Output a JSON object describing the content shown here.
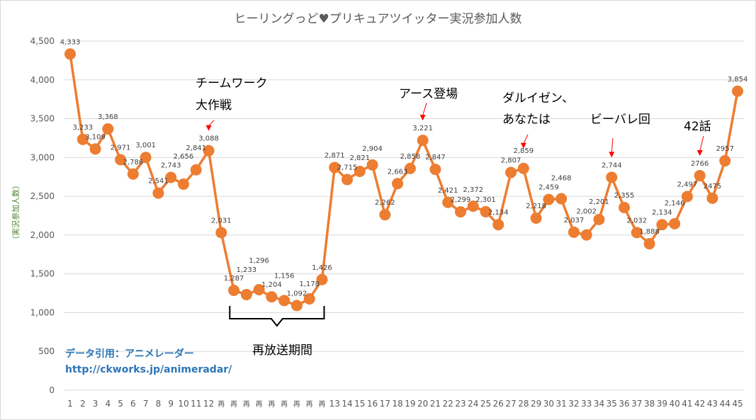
{
  "chart_data": {
    "type": "line",
    "title": "ヒーリングっど♥プリキュアツイッター実況参加人数",
    "ylabel": "（実況参加人数）",
    "xlabel": "",
    "ylim": [
      0,
      4500
    ],
    "yticks": [
      "0",
      "500",
      "1,000",
      "1,500",
      "2,000",
      "2,500",
      "3,000",
      "3,500",
      "4,000",
      "4,500"
    ],
    "grid": true,
    "categories": [
      "1",
      "2",
      "3",
      "4",
      "5",
      "6",
      "7",
      "8",
      "9",
      "10",
      "11",
      "12",
      "再",
      "再",
      "再",
      "再",
      "再",
      "再",
      "再",
      "再",
      "再",
      "13",
      "14",
      "15",
      "16",
      "17",
      "18",
      "19",
      "20",
      "21",
      "22",
      "23",
      "24",
      "25",
      "26",
      "27",
      "28",
      "29",
      "30",
      "31",
      "32",
      "33",
      "34",
      "35",
      "36",
      "37",
      "38",
      "39",
      "40",
      "41",
      "42",
      "43",
      "44",
      "45"
    ],
    "series": [
      {
        "name": "実況参加人数",
        "color": "#ed7d31",
        "values": [
          4333,
          3233,
          3109,
          3368,
          2971,
          2786,
          3001,
          2541,
          2743,
          2656,
          2841,
          3088,
          2031,
          1287,
          1233,
          1296,
          1204,
          1156,
          1092,
          1178,
          1426,
          2871,
          2715,
          2821,
          2904,
          2262,
          2663,
          2858,
          3221,
          2847,
          2421,
          2299,
          2372,
          2301,
          2134,
          2807,
          2859,
          2218,
          2459,
          2468,
          2037,
          2002,
          2201,
          2744,
          2355,
          2032,
          1888,
          2134,
          2146,
          2497,
          2766,
          2475,
          2957,
          3854
        ],
        "labels": [
          "4,333",
          "3,233",
          "3,109",
          "3,368",
          "2,971",
          "2,786",
          "3,001",
          "2,541",
          "2,743",
          "2,656",
          "2,841",
          "3,088",
          "2,031",
          "1,287",
          "1,233",
          "1,296",
          "1,204",
          "1,156",
          "1,092",
          "1,178",
          "1,426",
          "2,871",
          "2,715",
          "2,821",
          "2,904",
          "2,262",
          "2,663",
          "2,858",
          "3,221",
          "2,847",
          "2,421",
          "2,299",
          "2,372",
          "2,301",
          "2,134",
          "2,807",
          "2,859",
          "2,218",
          "2,459",
          "2,468",
          "2,037",
          "2,002",
          "2,201",
          "2,744",
          "2,355",
          "2,032",
          "1,888",
          "2,134",
          "2,146",
          "2,497",
          "2766",
          "2475",
          "2957",
          "3,854"
        ]
      }
    ],
    "annotations": {
      "teamwork_line1": "チームワーク",
      "teamwork_line2": "大作戦",
      "rebroadcast": "再放送期間",
      "earth": "アース登場",
      "daruizen_line1": "ダルイゼン、",
      "daruizen_line2": "あなたは",
      "bibare": "ビーバレ回",
      "ep42": "42話"
    },
    "source": {
      "label": "データ引用：アニメレーダー",
      "url": "http://ckworks.jp/animeradar/"
    },
    "arrow_color": "#ff0000"
  }
}
